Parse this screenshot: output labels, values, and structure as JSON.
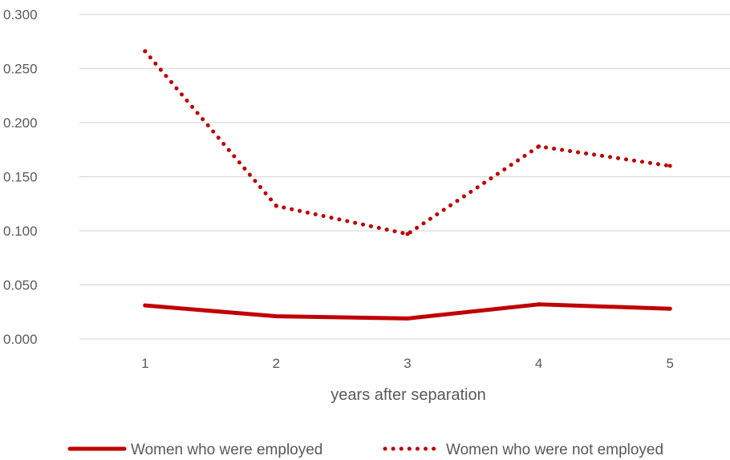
{
  "chart_data": {
    "type": "line",
    "xlabel": "years after separation",
    "ylabel": "",
    "categories": [
      "1",
      "2",
      "3",
      "4",
      "5"
    ],
    "ylim": [
      0,
      0.3
    ],
    "yticks": [
      "0.000",
      "0.050",
      "0.100",
      "0.150",
      "0.200",
      "0.250",
      "0.300"
    ],
    "grid": true,
    "legend_position": "bottom",
    "series": [
      {
        "name": "Women who were employed",
        "values": [
          0.031,
          0.021,
          0.019,
          0.032,
          0.028
        ],
        "color": "#c00000",
        "style": "solid"
      },
      {
        "name": "Women who were not employed",
        "values": [
          0.266,
          0.123,
          0.097,
          0.178,
          0.16
        ],
        "color": "#c00000",
        "style": "dotted"
      }
    ]
  }
}
